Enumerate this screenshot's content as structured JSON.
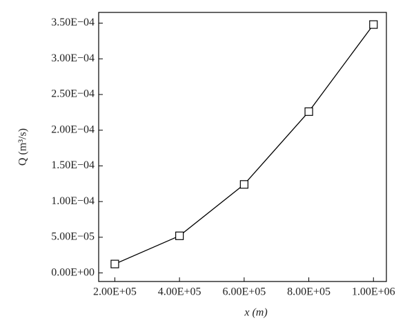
{
  "chart_data": {
    "type": "line",
    "x_label": "x (m)",
    "y_label": "Q (m³/s)",
    "x": [
      200000,
      400000,
      600000,
      800000,
      1000000
    ],
    "series": [
      {
        "color": "#000000",
        "marker": "square",
        "values": [
          1.25e-05,
          5.2e-05,
          0.000124,
          0.000226,
          0.000348
        ]
      }
    ],
    "xlim": [
      150000,
      1040000
    ],
    "ylim": [
      -1.2e-05,
      0.000365
    ],
    "xticks": [
      {
        "value": 200000,
        "label": "2.00E+05"
      },
      {
        "value": 400000,
        "label": "4.00E+05"
      },
      {
        "value": 600000,
        "label": "6.00E+05"
      },
      {
        "value": 800000,
        "label": "8.00E+05"
      },
      {
        "value": 1000000,
        "label": "1.00E+06"
      }
    ],
    "yticks": [
      {
        "value": 0,
        "label": "0.00E+00"
      },
      {
        "value": 5e-05,
        "label": "5.00E−05"
      },
      {
        "value": 0.0001,
        "label": "1.00E−04"
      },
      {
        "value": 0.00015,
        "label": "1.50E−04"
      },
      {
        "value": 0.0002,
        "label": "2.00E−04"
      },
      {
        "value": 0.00025,
        "label": "2.50E−04"
      },
      {
        "value": 0.0003,
        "label": "3.00E−04"
      },
      {
        "value": 0.00035,
        "label": "3.50E−04"
      }
    ],
    "grid": false
  }
}
